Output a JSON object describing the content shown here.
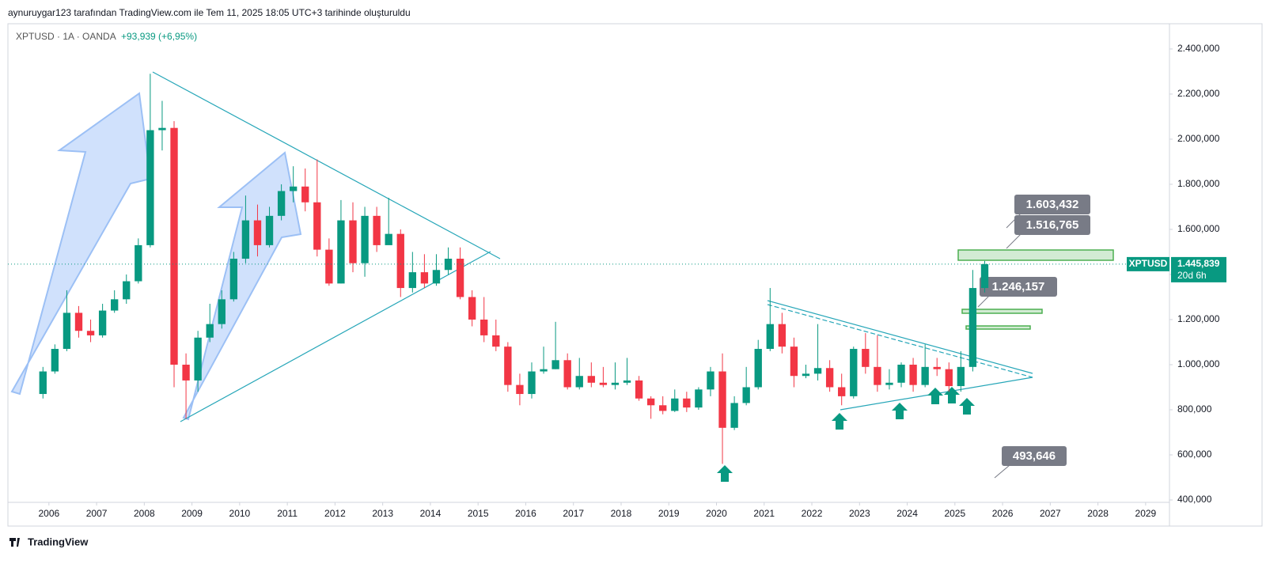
{
  "header": "aynuruygar123 tarafından TradingView.com ile Tem 11, 2025 18:05 UTC+3 tarihinde oluşturuldu",
  "footer": "TradingView",
  "chart_data": {
    "type": "candlestick",
    "symbol_line": "XPTUSD · 1A · OANDA",
    "change": "+93,939 (+6,95%)",
    "up_color": "#089981",
    "down_color": "#f23645",
    "xlim": [
      2005.14,
      2029.5
    ],
    "xticks": [
      2006,
      2007,
      2008,
      2009,
      2010,
      2011,
      2012,
      2013,
      2014,
      2015,
      2016,
      2017,
      2018,
      2019,
      2020,
      2021,
      2022,
      2023,
      2024,
      2025,
      2026,
      2027,
      2028,
      2029
    ],
    "ylim": [
      389.5,
      2512
    ],
    "yticks": [
      {
        "value": 400,
        "label": "400,000"
      },
      {
        "value": 600,
        "label": "600,000"
      },
      {
        "value": 800,
        "label": "800,000"
      },
      {
        "value": 1000,
        "label": "1.000,000"
      },
      {
        "value": 1200,
        "label": "1.200,000"
      },
      {
        "value": 1400,
        "label": "1.400,000"
      },
      {
        "value": 1600,
        "label": "1.600,000"
      },
      {
        "value": 1800,
        "label": "1.800,000"
      },
      {
        "value": 2000,
        "label": "2.000,000"
      },
      {
        "value": 2200,
        "label": "2.200,000"
      },
      {
        "value": 2400,
        "label": "2.400,000"
      }
    ],
    "x": [
      2005.875,
      2006.125,
      2006.375,
      2006.625,
      2006.875,
      2007.125,
      2007.375,
      2007.625,
      2007.875,
      2008.125,
      2008.375,
      2008.625,
      2008.875,
      2009.125,
      2009.375,
      2009.625,
      2009.875,
      2010.125,
      2010.375,
      2010.625,
      2010.875,
      2011.125,
      2011.375,
      2011.625,
      2011.875,
      2012.125,
      2012.375,
      2012.625,
      2012.875,
      2013.125,
      2013.375,
      2013.625,
      2013.875,
      2014.125,
      2014.375,
      2014.625,
      2014.875,
      2015.125,
      2015.375,
      2015.625,
      2015.875,
      2016.125,
      2016.375,
      2016.625,
      2016.875,
      2017.125,
      2017.375,
      2017.625,
      2017.875,
      2018.125,
      2018.375,
      2018.625,
      2018.875,
      2019.125,
      2019.375,
      2019.625,
      2019.875,
      2020.125,
      2020.375,
      2020.625,
      2020.875,
      2021.125,
      2021.375,
      2021.625,
      2021.875,
      2022.125,
      2022.375,
      2022.625,
      2022.875,
      2023.125,
      2023.375,
      2023.625,
      2023.875,
      2024.125,
      2024.375,
      2024.625,
      2024.875,
      2025.125,
      2025.375,
      2025.625
    ],
    "open": [
      870,
      970,
      1070,
      1230,
      1150,
      1130,
      1240,
      1290,
      1370,
      1530,
      2040,
      2050,
      1000,
      930,
      1120,
      1180,
      1290,
      1470,
      1640,
      1530,
      1660,
      1770,
      1790,
      1720,
      1510,
      1360,
      1640,
      1450,
      1660,
      1530,
      1580,
      1340,
      1410,
      1360,
      1420,
      1470,
      1300,
      1200,
      1130,
      1080,
      910,
      870,
      970,
      980,
      1020,
      900,
      950,
      920,
      910,
      920,
      930,
      850,
      820,
      795,
      850,
      810,
      890,
      970,
      720,
      830,
      900,
      1070,
      1180,
      1080,
      950,
      960,
      985,
      900,
      860,
      1070,
      990,
      910,
      920,
      1000,
      910,
      990,
      980,
      905,
      990,
      1340
    ],
    "high": [
      990,
      1090,
      1330,
      1260,
      1200,
      1270,
      1330,
      1400,
      1560,
      2290,
      2170,
      2080,
      1050,
      1150,
      1270,
      1330,
      1500,
      1750,
      1710,
      1700,
      1800,
      1880,
      1870,
      1910,
      1560,
      1730,
      1720,
      1700,
      1700,
      1740,
      1600,
      1500,
      1490,
      1490,
      1520,
      1520,
      1330,
      1300,
      1200,
      1100,
      960,
      1010,
      1080,
      1190,
      1050,
      1030,
      1010,
      990,
      1010,
      1030,
      950,
      860,
      860,
      890,
      880,
      900,
      990,
      1050,
      860,
      990,
      1110,
      1340,
      1230,
      1120,
      1000,
      1180,
      1020,
      960,
      1080,
      1140,
      1130,
      980,
      1010,
      1030,
      1090,
      1030,
      1010,
      1060,
      1420,
      1460
    ],
    "low": [
      850,
      960,
      1060,
      1120,
      1100,
      1120,
      1230,
      1270,
      1360,
      1520,
      1950,
      900,
      760,
      880,
      1100,
      1160,
      1280,
      1450,
      1480,
      1520,
      1640,
      1720,
      1680,
      1480,
      1350,
      1360,
      1410,
      1390,
      1500,
      1540,
      1300,
      1320,
      1340,
      1350,
      1400,
      1290,
      1170,
      1100,
      1060,
      880,
      820,
      850,
      960,
      980,
      890,
      890,
      900,
      900,
      890,
      910,
      840,
      760,
      780,
      790,
      790,
      800,
      860,
      560,
      710,
      820,
      890,
      1060,
      1050,
      900,
      940,
      930,
      880,
      820,
      850,
      960,
      880,
      890,
      900,
      880,
      900,
      950,
      880,
      880,
      970,
      1320
    ],
    "close": [
      970,
      1070,
      1230,
      1150,
      1130,
      1240,
      1290,
      1370,
      1530,
      2040,
      2050,
      1000,
      930,
      1120,
      1180,
      1290,
      1470,
      1640,
      1530,
      1660,
      1770,
      1790,
      1720,
      1510,
      1360,
      1640,
      1450,
      1660,
      1530,
      1580,
      1340,
      1410,
      1360,
      1420,
      1470,
      1300,
      1200,
      1130,
      1080,
      910,
      870,
      970,
      980,
      1020,
      900,
      950,
      920,
      910,
      920,
      930,
      850,
      820,
      795,
      850,
      810,
      890,
      970,
      720,
      830,
      900,
      1070,
      1180,
      1080,
      950,
      960,
      985,
      900,
      860,
      1070,
      990,
      910,
      920,
      1000,
      910,
      990,
      980,
      905,
      990,
      1340,
      1446
    ],
    "last_price": {
      "value": 1445.839,
      "label": "1.445,839"
    },
    "price_tag_symbol": "XPTUSD",
    "countdown": "20d 6h",
    "annotations": [
      "1.603,432",
      "1.516,765",
      "1.246,157",
      "493,646"
    ]
  }
}
